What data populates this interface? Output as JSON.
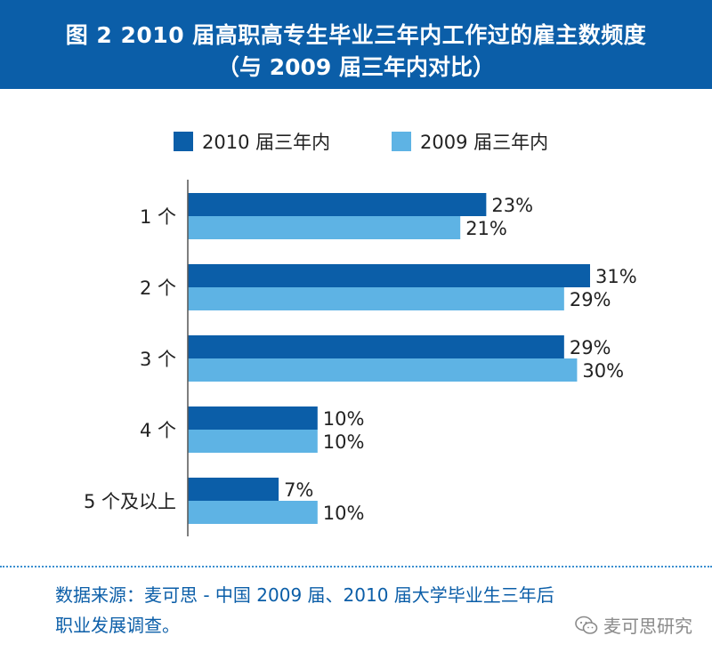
{
  "title": {
    "line1": "图 2  2010 届高职高专生毕业三年内工作过的雇主数频度",
    "line2": "（与 2009 届三年内对比）"
  },
  "chart_data": {
    "type": "bar",
    "orientation": "horizontal",
    "categories": [
      "1 个",
      "2 个",
      "3 个",
      "4 个",
      "5 个及以上"
    ],
    "series": [
      {
        "name": "2010 届三年内",
        "values": [
          23,
          31,
          29,
          10,
          7
        ],
        "labels": [
          "23%",
          "31%",
          "29%",
          "10%",
          "7%"
        ],
        "color": "#0b5ea8"
      },
      {
        "name": "2009 届三年内",
        "values": [
          21,
          29,
          30,
          10,
          10
        ],
        "labels": [
          "21%",
          "29%",
          "30%",
          "10%",
          "10%"
        ],
        "color": "#5eb3e4"
      }
    ],
    "unit": "%",
    "xlim": [
      0,
      40
    ],
    "legend": "top",
    "grid": false
  },
  "source": {
    "line1": "数据来源：麦可思 - 中国 2009 届、2010 届大学毕业生三年后",
    "line2": "职业发展调查。"
  },
  "watermark": {
    "text": "麦可思研究",
    "icon": "wechat-icon"
  }
}
